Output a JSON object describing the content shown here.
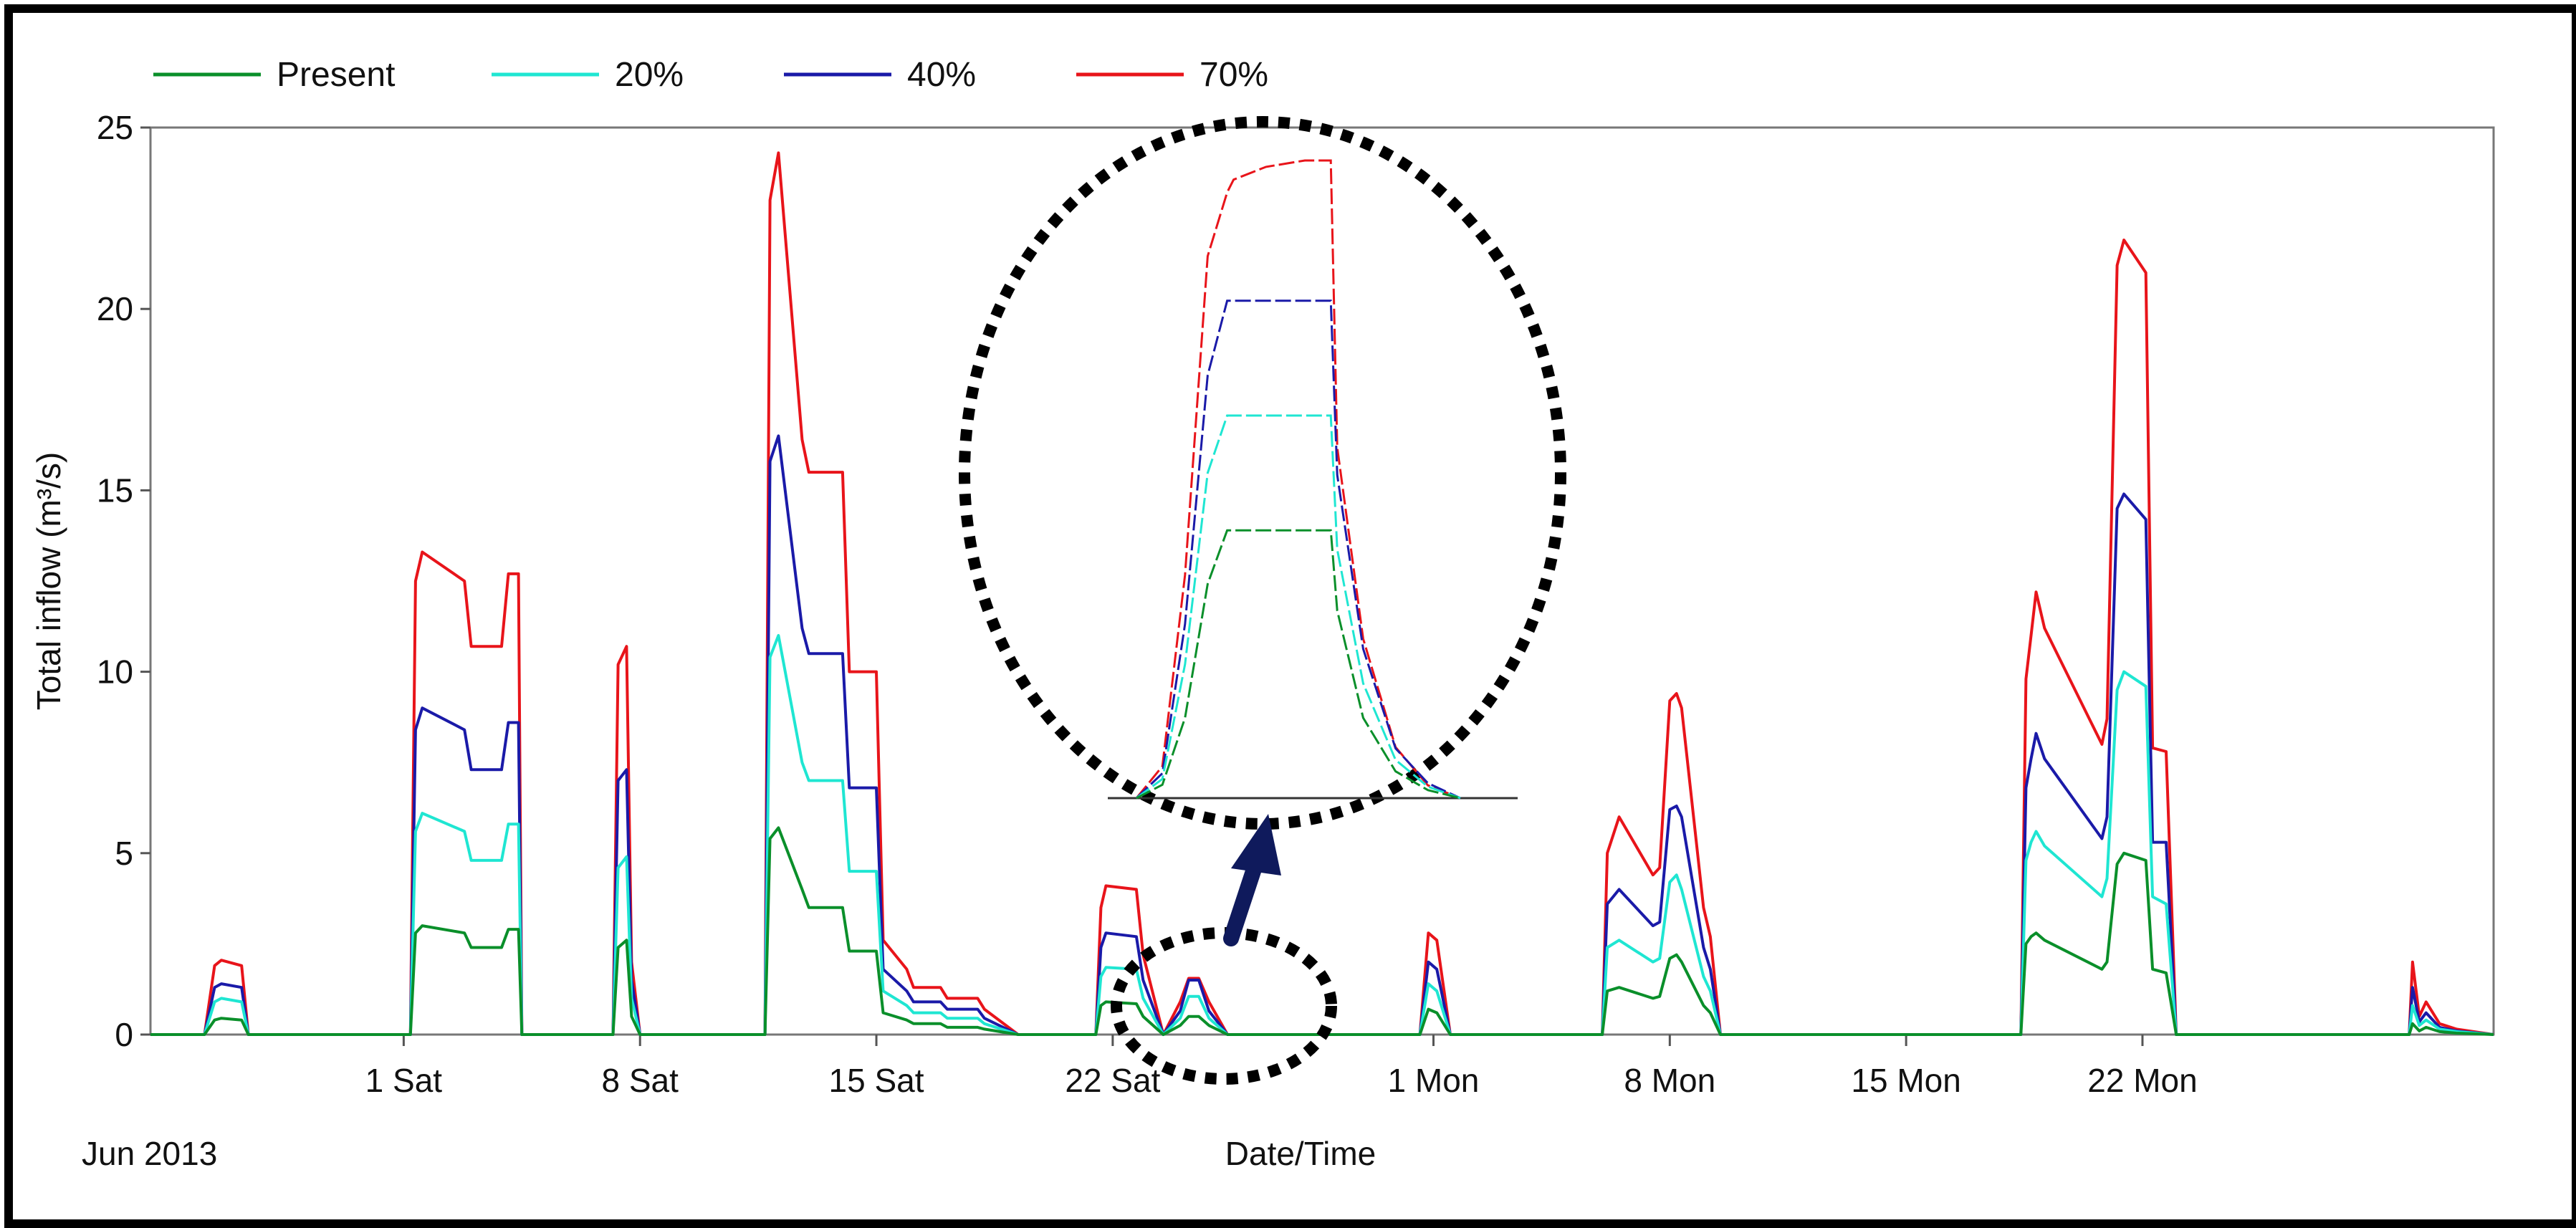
{
  "chart_data": {
    "type": "line",
    "xlabel": "Date/Time",
    "ylabel": "Total inflow (m³/s)",
    "x_caption": "Jun 2013",
    "ylim": [
      0,
      25
    ],
    "xlim": [
      0,
      69.4
    ],
    "yticks": [
      0,
      5,
      10,
      15,
      20,
      25
    ],
    "x_axis_labels": [
      {
        "x": 7.5,
        "label": "1 Sat"
      },
      {
        "x": 14.5,
        "label": "8 Sat"
      },
      {
        "x": 21.5,
        "label": "15 Sat"
      },
      {
        "x": 28.5,
        "label": "22 Sat"
      },
      {
        "x": 38,
        "label": "1 Mon"
      },
      {
        "x": 45,
        "label": "8 Mon"
      },
      {
        "x": 52,
        "label": "15 Mon"
      },
      {
        "x": 59,
        "label": "22 Mon"
      }
    ],
    "legend_position": "top-left",
    "grid": false,
    "series": [
      {
        "name": "Present",
        "color": "#0a8f2a",
        "x": [
          0,
          1.6,
          1.9,
          2.1,
          2.7,
          2.9,
          3.2,
          7.7,
          7.85,
          8.05,
          9.3,
          9.5,
          10.4,
          10.6,
          10.9,
          11,
          13.7,
          13.85,
          14.1,
          14.25,
          14.5,
          18.2,
          18.35,
          18.6,
          19.3,
          19.5,
          20.5,
          20.7,
          21.5,
          21.7,
          22.4,
          22.6,
          23.4,
          23.6,
          24.5,
          24.7,
          25.7,
          28,
          28.15,
          28.3,
          29.2,
          29.4,
          30,
          30.5,
          30.75,
          31.05,
          31.35,
          31.9,
          37.6,
          37.85,
          38.1,
          38.5,
          43,
          43.15,
          43.5,
          44.5,
          44.7,
          45,
          45.2,
          45.35,
          46,
          46.2,
          46.5,
          55.4,
          55.55,
          55.7,
          55.85,
          56.1,
          57.8,
          57.95,
          58.25,
          58.45,
          59.1,
          59.3,
          59.7,
          60,
          66.9,
          67,
          67.2,
          67.4,
          67.8,
          68.3,
          69.4
        ],
        "y": [
          0,
          0,
          0.4,
          0.45,
          0.4,
          0,
          0,
          0,
          2.8,
          3,
          2.8,
          2.4,
          2.4,
          2.9,
          2.9,
          0,
          0,
          2.4,
          2.6,
          0.5,
          0,
          0,
          5.4,
          5.7,
          4,
          3.5,
          3.5,
          2.3,
          2.3,
          0.6,
          0.4,
          0.3,
          0.3,
          0.2,
          0.2,
          0.15,
          0,
          0,
          0.8,
          0.9,
          0.85,
          0.5,
          0,
          0.25,
          0.5,
          0.5,
          0.25,
          0,
          0,
          0.7,
          0.6,
          0,
          0,
          1.2,
          1.3,
          1,
          1.05,
          2.1,
          2.2,
          2.0,
          0.8,
          0.6,
          0,
          0,
          2.5,
          2.7,
          2.8,
          2.6,
          1.8,
          2.0,
          4.7,
          5.0,
          4.8,
          1.8,
          1.7,
          0,
          0,
          0.3,
          0.1,
          0.2,
          0.08,
          0.04,
          0
        ]
      },
      {
        "name": "20%",
        "color": "#1fe6d2",
        "x": [
          0,
          1.6,
          1.9,
          2.1,
          2.7,
          2.9,
          3.2,
          7.7,
          7.85,
          8.05,
          9.3,
          9.5,
          10.4,
          10.6,
          10.9,
          11,
          13.7,
          13.85,
          14.1,
          14.25,
          14.5,
          18.2,
          18.35,
          18.6,
          19.3,
          19.5,
          20.5,
          20.7,
          21.5,
          21.7,
          22.4,
          22.6,
          23.4,
          23.6,
          24.5,
          24.7,
          25.7,
          28,
          28.15,
          28.3,
          29.2,
          29.4,
          30,
          30.5,
          30.75,
          31.05,
          31.35,
          31.9,
          37.6,
          37.85,
          38.1,
          38.5,
          43,
          43.15,
          43.5,
          44.5,
          44.7,
          45,
          45.2,
          45.35,
          46,
          46.2,
          46.5,
          55.4,
          55.55,
          55.7,
          55.85,
          56.1,
          57.8,
          57.95,
          58.25,
          58.45,
          59.1,
          59.3,
          59.7,
          60,
          66.9,
          67,
          67.2,
          67.4,
          67.8,
          68.3,
          69.4
        ],
        "y": [
          0,
          0,
          0.9,
          1.0,
          0.9,
          0,
          0,
          0,
          5.6,
          6.1,
          5.6,
          4.8,
          4.8,
          5.8,
          5.8,
          0,
          0,
          4.6,
          4.9,
          1.0,
          0,
          0,
          10.4,
          11.0,
          7.5,
          7.0,
          7.0,
          4.5,
          4.5,
          1.2,
          0.8,
          0.6,
          0.6,
          0.45,
          0.45,
          0.3,
          0,
          0,
          1.6,
          1.85,
          1.8,
          1.0,
          0,
          0.45,
          1.05,
          1.05,
          0.45,
          0,
          0,
          1.4,
          1.2,
          0,
          0,
          2.4,
          2.6,
          2.0,
          2.1,
          4.2,
          4.4,
          4.0,
          1.6,
          1.2,
          0,
          0,
          4.8,
          5.3,
          5.6,
          5.2,
          3.8,
          4.3,
          9.5,
          10.0,
          9.6,
          3.8,
          3.6,
          0,
          0,
          0.8,
          0.25,
          0.4,
          0.15,
          0.08,
          0
        ]
      },
      {
        "name": "40%",
        "color": "#1a1aa8",
        "x": [
          0,
          1.6,
          1.9,
          2.1,
          2.7,
          2.9,
          3.2,
          7.7,
          7.85,
          8.05,
          9.3,
          9.5,
          10.4,
          10.6,
          10.9,
          11,
          13.7,
          13.85,
          14.1,
          14.25,
          14.5,
          18.2,
          18.35,
          18.6,
          19.3,
          19.5,
          20.5,
          20.7,
          21.5,
          21.7,
          22.4,
          22.6,
          23.4,
          23.6,
          24.5,
          24.7,
          25.7,
          28,
          28.15,
          28.3,
          29.2,
          29.4,
          30,
          30.5,
          30.75,
          31.05,
          31.35,
          31.9,
          37.6,
          37.85,
          38.1,
          38.5,
          43,
          43.15,
          43.5,
          44.5,
          44.7,
          45,
          45.2,
          45.35,
          46,
          46.2,
          46.5,
          55.4,
          55.55,
          55.7,
          55.85,
          56.1,
          57.8,
          57.95,
          58.25,
          58.45,
          59.1,
          59.3,
          59.7,
          60,
          66.9,
          67,
          67.2,
          67.4,
          67.8,
          68.3,
          69.4
        ],
        "y": [
          0,
          0,
          1.3,
          1.4,
          1.3,
          0,
          0,
          0,
          8.4,
          9.0,
          8.4,
          7.3,
          7.3,
          8.6,
          8.6,
          0,
          0,
          7.0,
          7.3,
          1.5,
          0,
          0,
          15.8,
          16.5,
          11.2,
          10.5,
          10.5,
          6.8,
          6.8,
          1.8,
          1.2,
          0.9,
          0.9,
          0.7,
          0.7,
          0.45,
          0,
          0,
          2.4,
          2.8,
          2.7,
          1.5,
          0,
          0.65,
          1.5,
          1.5,
          0.65,
          0,
          0,
          2.0,
          1.8,
          0,
          0,
          3.6,
          4.0,
          3.0,
          3.1,
          6.2,
          6.3,
          6.0,
          2.4,
          1.8,
          0,
          0,
          6.8,
          7.6,
          8.3,
          7.6,
          5.4,
          6.0,
          14.5,
          14.9,
          14.2,
          5.3,
          5.3,
          0,
          0,
          1.3,
          0.35,
          0.6,
          0.2,
          0.1,
          0
        ]
      },
      {
        "name": "70%",
        "color": "#e8141a",
        "x": [
          0,
          1.6,
          1.9,
          2.1,
          2.7,
          2.9,
          3.2,
          7.7,
          7.85,
          8.05,
          9.3,
          9.5,
          10.4,
          10.6,
          10.9,
          11,
          13.7,
          13.85,
          14.1,
          14.25,
          14.5,
          18.2,
          18.35,
          18.6,
          19.3,
          19.5,
          20.5,
          20.7,
          21.5,
          21.7,
          22.4,
          22.6,
          23.4,
          23.6,
          24.5,
          24.7,
          25.7,
          28,
          28.15,
          28.3,
          29.2,
          29.4,
          30,
          30.5,
          30.75,
          31.05,
          31.35,
          31.9,
          37.6,
          37.85,
          38.1,
          38.5,
          43,
          43.15,
          43.5,
          44.5,
          44.7,
          45,
          45.2,
          45.35,
          46,
          46.2,
          46.5,
          55.4,
          55.55,
          55.7,
          55.85,
          56.1,
          57.8,
          57.95,
          58.25,
          58.45,
          59.1,
          59.3,
          59.7,
          60,
          66.9,
          67,
          67.2,
          67.4,
          67.8,
          68.3,
          69.4
        ],
        "y": [
          0,
          0,
          1.9,
          2.05,
          1.9,
          0,
          0,
          0,
          12.5,
          13.3,
          12.5,
          10.7,
          10.7,
          12.7,
          12.7,
          0,
          0,
          10.2,
          10.7,
          2.0,
          0,
          0,
          23.0,
          24.3,
          16.4,
          15.5,
          15.5,
          10.0,
          10.0,
          2.6,
          1.8,
          1.3,
          1.3,
          1.0,
          1.0,
          0.7,
          0,
          0,
          3.5,
          4.1,
          4.0,
          2.2,
          0,
          0.9,
          1.55,
          1.55,
          0.9,
          0,
          0,
          2.8,
          2.6,
          0,
          0,
          5.0,
          6.0,
          4.4,
          4.6,
          9.2,
          9.4,
          9.0,
          3.5,
          2.7,
          0,
          0,
          9.8,
          11.0,
          12.2,
          11.2,
          8.0,
          8.7,
          21.2,
          21.9,
          21.0,
          7.9,
          7.8,
          0,
          0,
          2.0,
          0.5,
          0.9,
          0.3,
          0.15,
          0
        ]
      }
    ],
    "inset_zoom": {
      "description_source": "magnified view of the small event near 22-24 Sat",
      "x": [
        0,
        0.08,
        0.15,
        0.22,
        0.28,
        0.3,
        0.4,
        0.52,
        0.6,
        0.62,
        0.7,
        0.8,
        0.9,
        1
      ],
      "series": {
        "Present": [
          0,
          0.05,
          0.3,
          0.8,
          1.0,
          1.0,
          1.0,
          1.0,
          1.0,
          0.7,
          0.3,
          0.1,
          0.03,
          0
        ],
        "20%": [
          0,
          0.05,
          0.35,
          0.85,
          1.0,
          1.0,
          1.0,
          1.0,
          1.0,
          0.65,
          0.3,
          0.1,
          0.03,
          0
        ],
        "40%": [
          0,
          0.05,
          0.35,
          0.85,
          1.0,
          1.0,
          1.0,
          1.0,
          1.0,
          0.65,
          0.3,
          0.1,
          0.03,
          0
        ],
        "70%": [
          0,
          0.05,
          0.35,
          0.85,
          0.95,
          0.97,
          0.99,
          1.0,
          1.0,
          0.55,
          0.25,
          0.08,
          0.02,
          0
        ]
      },
      "peaks": {
        "Present": 0.42,
        "20%": 0.6,
        "40%": 0.78,
        "70%": 1.0
      }
    }
  }
}
